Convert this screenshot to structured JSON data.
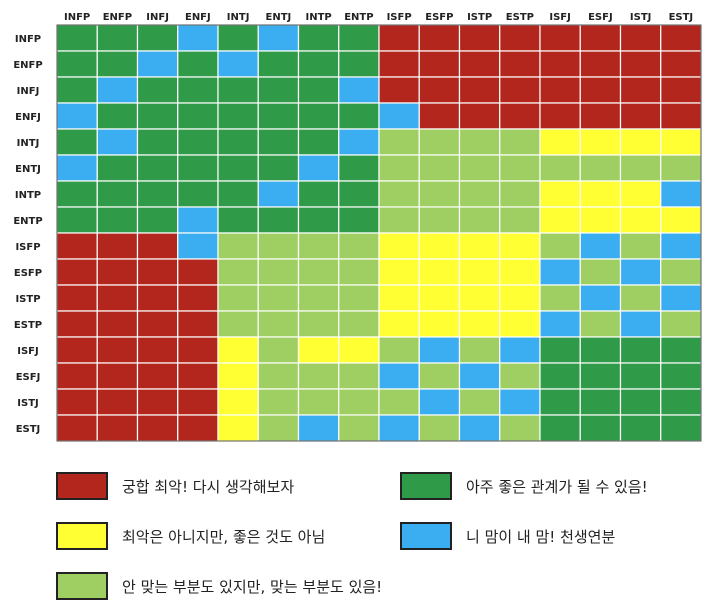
{
  "chart_data": {
    "type": "heatmap",
    "columns": [
      "INFP",
      "ENFP",
      "INFJ",
      "ENFJ",
      "INTJ",
      "ENTJ",
      "INTP",
      "ENTP",
      "ISFP",
      "ESFP",
      "ISTP",
      "ESTP",
      "ISFJ",
      "ESFJ",
      "ISTJ",
      "ESTJ"
    ],
    "rows": [
      "INFP",
      "ENFP",
      "INFJ",
      "ENFJ",
      "INTJ",
      "ENTJ",
      "INTP",
      "ENTP",
      "ISFP",
      "ESFP",
      "ISTP",
      "ESTP",
      "ISFJ",
      "ESFJ",
      "ISTJ",
      "ESTJ"
    ],
    "values": [
      [
        "G",
        "G",
        "G",
        "B",
        "G",
        "B",
        "G",
        "G",
        "R",
        "R",
        "R",
        "R",
        "R",
        "R",
        "R",
        "R"
      ],
      [
        "G",
        "G",
        "B",
        "G",
        "B",
        "G",
        "G",
        "G",
        "R",
        "R",
        "R",
        "R",
        "R",
        "R",
        "R",
        "R"
      ],
      [
        "G",
        "B",
        "G",
        "G",
        "G",
        "G",
        "G",
        "B",
        "R",
        "R",
        "R",
        "R",
        "R",
        "R",
        "R",
        "R"
      ],
      [
        "B",
        "G",
        "G",
        "G",
        "G",
        "G",
        "G",
        "G",
        "B",
        "R",
        "R",
        "R",
        "R",
        "R",
        "R",
        "R"
      ],
      [
        "G",
        "B",
        "G",
        "G",
        "G",
        "G",
        "G",
        "B",
        "L",
        "L",
        "L",
        "L",
        "Y",
        "Y",
        "Y",
        "Y"
      ],
      [
        "B",
        "G",
        "G",
        "G",
        "G",
        "G",
        "B",
        "G",
        "L",
        "L",
        "L",
        "L",
        "L",
        "L",
        "L",
        "L"
      ],
      [
        "G",
        "G",
        "G",
        "G",
        "G",
        "B",
        "G",
        "G",
        "L",
        "L",
        "L",
        "L",
        "Y",
        "Y",
        "Y",
        "B"
      ],
      [
        "G",
        "G",
        "G",
        "B",
        "G",
        "G",
        "G",
        "G",
        "L",
        "L",
        "L",
        "L",
        "Y",
        "Y",
        "Y",
        "Y"
      ],
      [
        "R",
        "R",
        "R",
        "B",
        "L",
        "L",
        "L",
        "L",
        "Y",
        "Y",
        "Y",
        "Y",
        "L",
        "B",
        "L",
        "B"
      ],
      [
        "R",
        "R",
        "R",
        "R",
        "L",
        "L",
        "L",
        "L",
        "Y",
        "Y",
        "Y",
        "Y",
        "B",
        "L",
        "B",
        "L"
      ],
      [
        "R",
        "R",
        "R",
        "R",
        "L",
        "L",
        "L",
        "L",
        "Y",
        "Y",
        "Y",
        "Y",
        "L",
        "B",
        "L",
        "B"
      ],
      [
        "R",
        "R",
        "R",
        "R",
        "L",
        "L",
        "L",
        "L",
        "Y",
        "Y",
        "Y",
        "Y",
        "B",
        "L",
        "B",
        "L"
      ],
      [
        "R",
        "R",
        "R",
        "R",
        "Y",
        "L",
        "Y",
        "Y",
        "L",
        "B",
        "L",
        "B",
        "G",
        "G",
        "G",
        "G"
      ],
      [
        "R",
        "R",
        "R",
        "R",
        "Y",
        "L",
        "L",
        "L",
        "B",
        "L",
        "B",
        "L",
        "G",
        "G",
        "G",
        "G"
      ],
      [
        "R",
        "R",
        "R",
        "R",
        "Y",
        "L",
        "L",
        "L",
        "L",
        "B",
        "L",
        "B",
        "G",
        "G",
        "G",
        "G"
      ],
      [
        "R",
        "R",
        "R",
        "R",
        "Y",
        "L",
        "B",
        "L",
        "B",
        "L",
        "B",
        "L",
        "G",
        "G",
        "G",
        "G"
      ]
    ],
    "colors": {
      "R": "#b3261e",
      "G": "#2f9a47",
      "Y": "#ffff33",
      "B": "#3aaef0",
      "L": "#9fcf63"
    },
    "legend": [
      {
        "key": "R",
        "label": "궁합 최악! 다시 생각해보자"
      },
      {
        "key": "G",
        "label": "아주 좋은 관계가 될 수 있음!"
      },
      {
        "key": "Y",
        "label": "최악은 아니지만, 좋은 것도 아님"
      },
      {
        "key": "B",
        "label": "니 맘이 내 맘! 천생연분"
      },
      {
        "key": "L",
        "label": "안 맞는 부분도 있지만, 맞는 부분도 있음!"
      }
    ]
  }
}
